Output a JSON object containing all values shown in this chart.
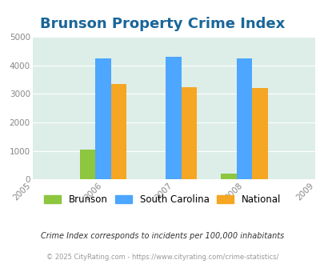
{
  "title": "Brunson Property Crime Index",
  "bar_years": [
    2006,
    2007,
    2008
  ],
  "brunson": [
    1060,
    0,
    200
  ],
  "south_carolina": [
    4260,
    4300,
    4260
  ],
  "national": [
    3350,
    3250,
    3200
  ],
  "brunson_color": "#8dc63f",
  "sc_color": "#4da6ff",
  "national_color": "#f5a623",
  "ylim": [
    0,
    5000
  ],
  "yticks": [
    0,
    1000,
    2000,
    3000,
    4000,
    5000
  ],
  "bg_color": "#ddeee8",
  "title_color": "#1a6699",
  "title_fontsize": 13,
  "legend_labels": [
    "Brunson",
    "South Carolina",
    "National"
  ],
  "footnote1": "Crime Index corresponds to incidents per 100,000 inhabitants",
  "footnote2": "© 2025 CityRating.com - https://www.cityrating.com/crime-statistics/",
  "bar_width": 0.22,
  "xtick_labels": [
    "2005",
    "2006",
    "2007",
    "2008",
    "2009"
  ],
  "xtick_pos": [
    0,
    1,
    2,
    3,
    4
  ]
}
